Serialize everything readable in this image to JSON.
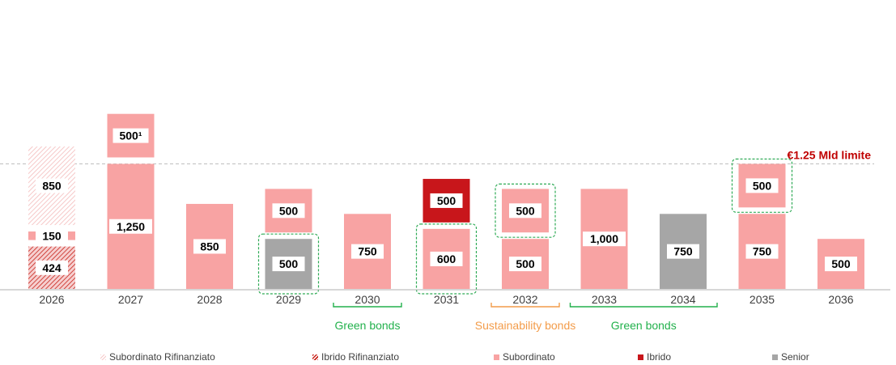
{
  "chart_data": {
    "type": "bar",
    "categories": [
      "2026",
      "2027",
      "2028",
      "2029",
      "2030",
      "2031",
      "2032",
      "2033",
      "2034",
      "2035",
      "2036"
    ],
    "stacks": [
      {
        "year": "2026",
        "segments": [
          {
            "series": "Ibrido Rifinanziato",
            "value": 424,
            "label": "424"
          },
          {
            "series": "Subordinato",
            "value": 150,
            "label": "150"
          },
          {
            "series": "Subordinato Rifinanziato",
            "value": 850,
            "label": "850"
          }
        ]
      },
      {
        "year": "2027",
        "segments": [
          {
            "series": "Subordinato",
            "value": 1250,
            "label": "1,250"
          },
          {
            "series": "Subordinato",
            "value": 500,
            "label": "500¹"
          }
        ]
      },
      {
        "year": "2028",
        "segments": [
          {
            "series": "Subordinato",
            "value": 850,
            "label": "850"
          }
        ]
      },
      {
        "year": "2029",
        "segments": [
          {
            "series": "Senior",
            "value": 500,
            "label": "500"
          },
          {
            "series": "Subordinato",
            "value": 500,
            "label": "500"
          }
        ]
      },
      {
        "year": "2030",
        "segments": [
          {
            "series": "Subordinato",
            "value": 750,
            "label": "750"
          }
        ]
      },
      {
        "year": "2031",
        "segments": [
          {
            "series": "Subordinato",
            "value": 600,
            "label": "600"
          },
          {
            "series": "Ibrido",
            "value": 500,
            "label": "500"
          }
        ]
      },
      {
        "year": "2032",
        "segments": [
          {
            "series": "Subordinato",
            "value": 500,
            "label": "500"
          },
          {
            "series": "Subordinato",
            "value": 500,
            "label": "500"
          }
        ]
      },
      {
        "year": "2033",
        "segments": [
          {
            "series": "Subordinato",
            "value": 1000,
            "label": "1,000"
          }
        ]
      },
      {
        "year": "2034",
        "segments": [
          {
            "series": "Senior",
            "value": 750,
            "label": "750"
          }
        ]
      },
      {
        "year": "2035",
        "segments": [
          {
            "series": "Subordinato",
            "value": 750,
            "label": "750"
          },
          {
            "series": "Subordinato",
            "value": 500,
            "label": "500"
          }
        ]
      },
      {
        "year": "2036",
        "segments": [
          {
            "series": "Subordinato",
            "value": 500,
            "label": "500"
          }
        ]
      }
    ],
    "series": [
      {
        "name": "Subordinato Rifinanziato",
        "color": "#f6c8c8",
        "pattern": "hatch-light"
      },
      {
        "name": "Ibrido Rifinanziato",
        "color": "#c8231b",
        "pattern": "hatch"
      },
      {
        "name": "Subordinato",
        "color": "#f8a3a3"
      },
      {
        "name": "Ibrido",
        "color": "#c8161b"
      },
      {
        "name": "Senior",
        "color": "#a6a6a6"
      }
    ],
    "reference_line": {
      "value": 1250,
      "label": "€1.25 Mld limite",
      "color": "#c00000"
    },
    "highlight_boxes": [
      {
        "year": "2029",
        "segment_index": 0
      },
      {
        "year": "2031",
        "segment_index": 0
      },
      {
        "year": "2032",
        "segment_index": 1
      },
      {
        "year": "2035",
        "segment_index": 1
      }
    ],
    "annotations": [
      {
        "label": "Green bonds",
        "years": [
          "2030"
        ],
        "color": "#22b14c"
      },
      {
        "label": "Sustainability bonds",
        "years": [
          "2032"
        ],
        "color": "#f39c4a"
      },
      {
        "label": "Green bonds",
        "years": [
          "2033",
          "2034"
        ],
        "color": "#22b14c"
      }
    ],
    "ylim": [
      0,
      1800
    ],
    "title": "",
    "xlabel": "",
    "ylabel": ""
  }
}
